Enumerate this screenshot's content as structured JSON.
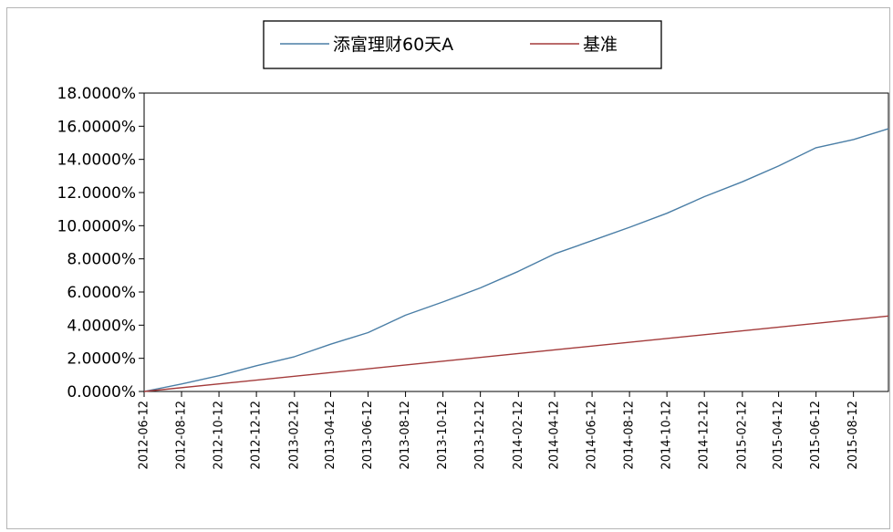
{
  "chart_data": {
    "type": "line",
    "title": "",
    "xlabel": "",
    "ylabel": "",
    "ylim": [
      0,
      18
    ],
    "y_ticks": [
      0,
      2,
      4,
      6,
      8,
      10,
      12,
      14,
      16,
      18
    ],
    "y_tick_labels": [
      "0.0000%",
      "2.0000%",
      "4.0000%",
      "6.0000%",
      "8.0000%",
      "10.0000%",
      "12.0000%",
      "14.0000%",
      "16.0000%",
      "18.0000%"
    ],
    "x_tick_labels": [
      "2012-06-12",
      "2012-08-12",
      "2012-10-12",
      "2012-12-12",
      "2013-02-12",
      "2013-04-12",
      "2013-06-12",
      "2013-08-12",
      "2013-10-12",
      "2013-12-12",
      "2014-02-12",
      "2014-04-12",
      "2014-06-12",
      "2014-08-12",
      "2014-10-12",
      "2014-12-12",
      "2015-02-12",
      "2015-04-12",
      "2015-06-12",
      "2015-08-12"
    ],
    "x_range": [
      "2012-06-12",
      "2015-10-08"
    ],
    "grid": false,
    "legend_position": "top-center",
    "series": [
      {
        "name": "添富理财60天A",
        "color": "#4a7ea6",
        "x": [
          "2012-06-12",
          "2012-08-12",
          "2012-10-12",
          "2012-12-12",
          "2013-02-12",
          "2013-04-12",
          "2013-06-12",
          "2013-08-12",
          "2013-10-12",
          "2013-12-12",
          "2014-02-12",
          "2014-04-12",
          "2014-06-12",
          "2014-08-12",
          "2014-10-12",
          "2014-12-12",
          "2015-02-12",
          "2015-04-12",
          "2015-06-12",
          "2015-08-12",
          "2015-10-08"
        ],
        "y": [
          0.0,
          0.45,
          0.95,
          1.55,
          2.1,
          2.85,
          3.55,
          4.6,
          5.4,
          6.25,
          7.25,
          8.3,
          9.1,
          9.9,
          10.75,
          11.75,
          12.65,
          13.6,
          14.7,
          15.2,
          15.85
        ]
      },
      {
        "name": "基准",
        "color": "#a33a3a",
        "x": [
          "2012-06-12",
          "2015-10-08"
        ],
        "y": [
          0.0,
          4.55
        ]
      }
    ]
  }
}
